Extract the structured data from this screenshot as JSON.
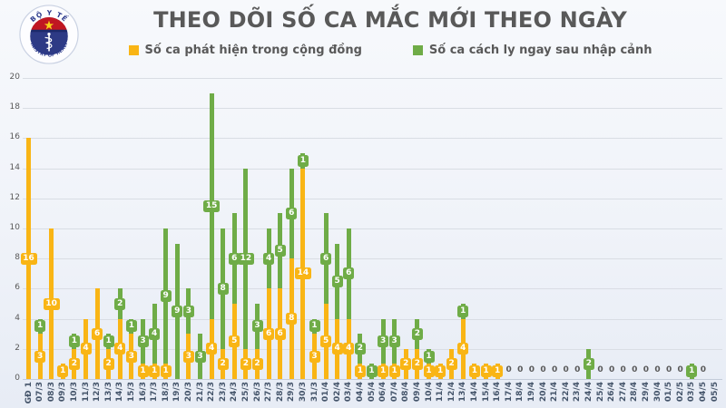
{
  "header": {
    "title": "THEO DÕI SỐ CA MẮC MỚI THEO NGÀY",
    "logo": {
      "top_text": "BỘ Y TẾ",
      "bottom_text": "MINISTRY OF HEALTH"
    }
  },
  "legend": [
    {
      "label": "Số ca phát hiện trong cộng đồng",
      "color": "#F9B515"
    },
    {
      "label": "Số ca cách ly ngay sau nhập cảnh",
      "color": "#6FAC47"
    }
  ],
  "chart_data": {
    "type": "bar",
    "stacked": true,
    "title": "THEO DÕI SỐ CA MẮC MỚI THEO NGÀY",
    "xlabel": "",
    "ylabel": "",
    "ylim": [
      0,
      20
    ],
    "ytick_step": 2,
    "grid": true,
    "legend_position": "top",
    "zero_shown_as_text": true,
    "categories": [
      "GĐ 1",
      "07/3",
      "08/3",
      "09/3",
      "10/3",
      "11/3",
      "12/3",
      "13/3",
      "14/3",
      "15/3",
      "16/3",
      "17/3",
      "18/3",
      "19/3",
      "20/3",
      "21/3",
      "22/3",
      "23/3",
      "24/3",
      "25/3",
      "26/3",
      "27/3",
      "28/3",
      "29/3",
      "30/3",
      "31/3",
      "01/4",
      "02/4",
      "03/4",
      "04/4",
      "05/4",
      "06/4",
      "07/4",
      "08/4",
      "09/4",
      "10/4",
      "11/4",
      "12/4",
      "13/4",
      "14/4",
      "15/4",
      "16/4",
      "17/4",
      "18/4",
      "19/4",
      "20/4",
      "21/4",
      "22/4",
      "23/4",
      "24/4",
      "25/4",
      "26/4",
      "27/4",
      "28/4",
      "29/4",
      "30/4",
      "01/5",
      "02/5",
      "03/5",
      "04/5",
      "05/5"
    ],
    "series": [
      {
        "name": "Số ca phát hiện trong cộng đồng",
        "color": "#F9B515",
        "values": [
          16,
          3,
          10,
          1,
          2,
          4,
          6,
          2,
          4,
          3,
          1,
          1,
          1,
          0,
          3,
          0,
          4,
          2,
          5,
          2,
          2,
          6,
          6,
          8,
          14,
          3,
          5,
          4,
          4,
          1,
          0,
          1,
          1,
          2,
          2,
          1,
          1,
          2,
          4,
          1,
          1,
          1,
          0,
          0,
          0,
          0,
          0,
          0,
          0,
          0,
          0,
          0,
          0,
          0,
          0,
          0,
          0,
          0,
          0,
          0,
          null
        ]
      },
      {
        "name": "Số ca cách ly ngay sau nhập cảnh",
        "color": "#6FAC47",
        "values": [
          0,
          1,
          0,
          0,
          1,
          0,
          0,
          1,
          2,
          1,
          3,
          4,
          9,
          9,
          3,
          3,
          15,
          8,
          6,
          12,
          3,
          4,
          5,
          6,
          1,
          1,
          6,
          5,
          6,
          2,
          1,
          3,
          3,
          0,
          2,
          1,
          0,
          0,
          1,
          0,
          0,
          0,
          0,
          0,
          0,
          0,
          0,
          0,
          0,
          2,
          0,
          0,
          0,
          0,
          0,
          0,
          0,
          0,
          1,
          0,
          null
        ]
      }
    ]
  },
  "colors": {
    "grid": "#d9dde4",
    "axis": "#c3ccd9",
    "x_tick": "#44546A",
    "y_tick": "#595959",
    "title": "#595959",
    "zero_text": "#595959"
  }
}
